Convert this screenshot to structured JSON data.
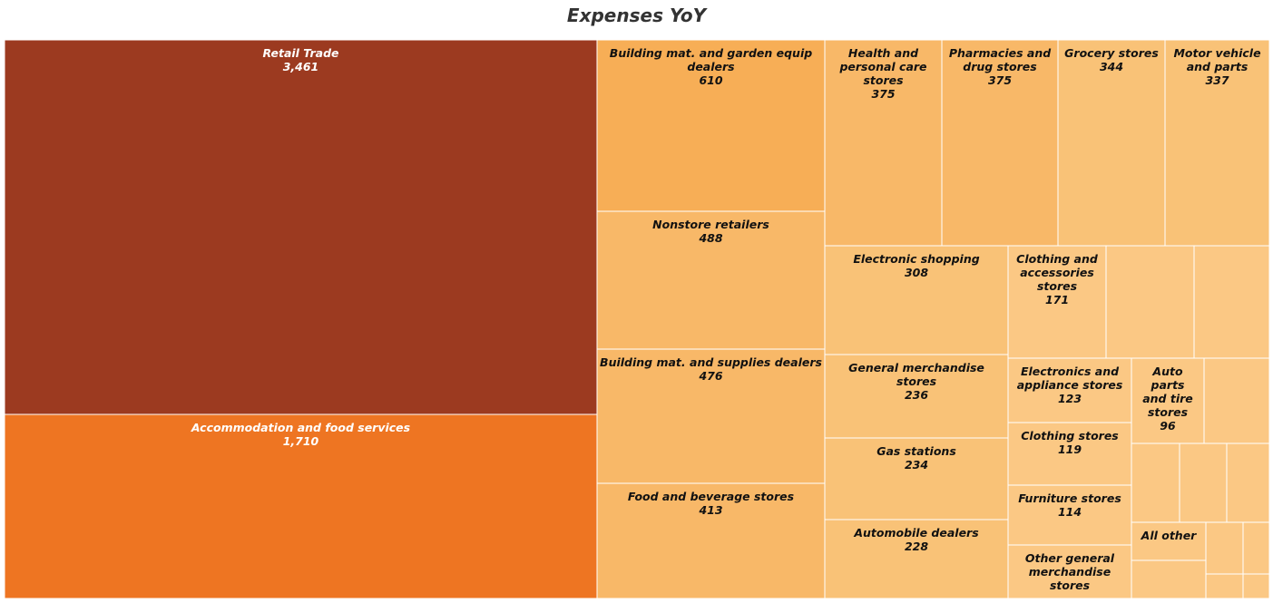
{
  "chart_data": {
    "type": "treemap",
    "title": "Expenses YoY",
    "colors": {
      "retail": "#9c3a20",
      "accommodation": "#ee7522",
      "building_garden": "#f7ae56",
      "light": "#f8b868",
      "lighter": "#f9c277",
      "palest": "#fbc884",
      "border": "#ffffff"
    },
    "nodes": [
      {
        "label": "Retail Trade",
        "value_label": "3,461",
        "value": 3461
      },
      {
        "label": "Accommodation and food services",
        "value_label": "1,710",
        "value": 1710
      },
      {
        "label": "Building mat. and garden equip dealers",
        "value_label": "610",
        "value": 610
      },
      {
        "label": "Nonstore retailers",
        "value_label": "488",
        "value": 488
      },
      {
        "label": "Building mat. and supplies dealers",
        "value_label": "476",
        "value": 476
      },
      {
        "label": "Food and beverage stores",
        "value_label": "413",
        "value": 413
      },
      {
        "label": "Health and personal care stores",
        "value_label": "375",
        "value": 375
      },
      {
        "label": "Pharmacies and drug stores",
        "value_label": "375",
        "value": 375
      },
      {
        "label": "Grocery stores",
        "value_label": "344",
        "value": 344
      },
      {
        "label": "Motor vehicle and parts",
        "value_label": "337",
        "value": 337
      },
      {
        "label": "Electronic shopping",
        "value_label": "308",
        "value": 308
      },
      {
        "label": "General merchandise stores",
        "value_label": "236",
        "value": 236
      },
      {
        "label": "Gas stations",
        "value_label": "234",
        "value": 234
      },
      {
        "label": "Automobile dealers",
        "value_label": "228",
        "value": 228
      },
      {
        "label": "Clothing and accessories stores",
        "value_label": "171",
        "value": 171
      },
      {
        "label": "Electronics and appliance stores",
        "value_label": "123",
        "value": 123
      },
      {
        "label": "Clothing stores",
        "value_label": "119",
        "value": 119
      },
      {
        "label": "Furniture stores",
        "value_label": "114",
        "value": 114
      },
      {
        "label": "Other general merchandise stores",
        "value_label": "",
        "value": null
      },
      {
        "label": "Auto parts and tire stores",
        "value_label": "96",
        "value": 96
      },
      {
        "label": "All other",
        "value_label": "",
        "value": null
      }
    ]
  }
}
